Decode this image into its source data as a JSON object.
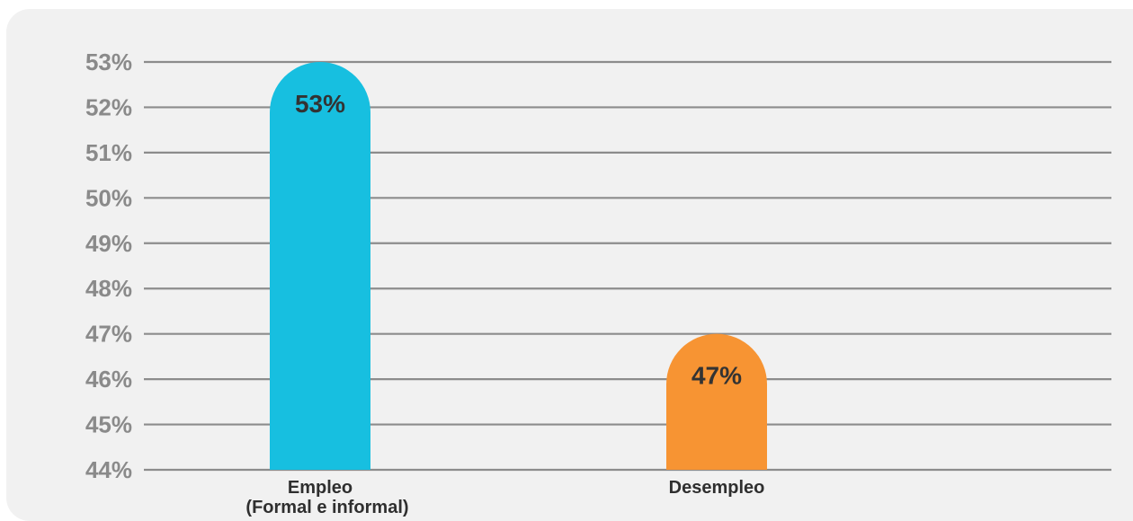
{
  "chart_data": {
    "type": "bar",
    "categories": [
      [
        "Empleo",
        "(Formal e informal)"
      ],
      [
        "Desempleo"
      ]
    ],
    "values": [
      53,
      47
    ],
    "data_labels": [
      "53%",
      "47%"
    ],
    "colors": [
      "#17bfe0",
      "#f79433"
    ],
    "ylim": [
      44,
      53
    ],
    "yticks": [
      53,
      52,
      51,
      50,
      49,
      48,
      47,
      46,
      45,
      44
    ],
    "ytick_labels": [
      "53%",
      "52%",
      "51%",
      "50%",
      "49%",
      "48%",
      "47%",
      "46%",
      "45%",
      "44%"
    ],
    "grid": true,
    "legend": "none"
  }
}
